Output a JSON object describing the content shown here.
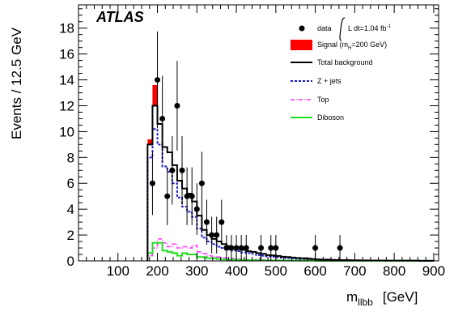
{
  "chart_data": {
    "type": "histogram",
    "title": "",
    "experiment_label": "ATLAS",
    "xlabel_main": "m",
    "xlabel_sub": "llbb",
    "xlabel_unit": "[GeV]",
    "ylabel": "Events / 12.5 GeV",
    "xlim": [
      0,
      912.5
    ],
    "ylim": [
      0,
      19.8
    ],
    "bin_width": 12.5,
    "bin_start": 175,
    "x_ticks": [
      100,
      200,
      300,
      400,
      500,
      600,
      700,
      800,
      900
    ],
    "y_ticks": [
      0,
      2,
      4,
      6,
      8,
      10,
      12,
      14,
      16,
      18
    ],
    "grid": false,
    "legend_position": "top-right",
    "legend": {
      "data": "data",
      "data_lumi": "L dt=1.04 fb",
      "data_lumi_sup": "-1",
      "signal_pre": "Signal (m",
      "signal_sub": "H",
      "signal_post": "=200 GeV)",
      "total": "Total background",
      "zjets": "Z + jets",
      "top": "Top",
      "diboson": "Diboson"
    },
    "colors": {
      "data": "#000000",
      "signal": "#ff0000",
      "total": "#000000",
      "zjets": "#1a1acc",
      "top": "#ff33ff",
      "diboson": "#22dd22"
    },
    "total_background": [
      9.0,
      12.0,
      10.6,
      8.8,
      8.4,
      7.4,
      6.2,
      5.6,
      5.2,
      4.6,
      3.5,
      2.4,
      2.0,
      1.7,
      1.5,
      1.3,
      1.15,
      1.05,
      0.95,
      0.85,
      0.75,
      0.7,
      0.6,
      0.55,
      0.45,
      0.42,
      0.38,
      0.32,
      0.3,
      0.26,
      0.22,
      0.2,
      0.18,
      0.15,
      0.12,
      0.1,
      0.1,
      0.08,
      0.07,
      0.06,
      0.06,
      0.05,
      0.05,
      0.04,
      0.04,
      0.03,
      0.03,
      0.03,
      0.02,
      0.02,
      0.02,
      0.02,
      0.02,
      0.02,
      0.02,
      0.01,
      0.01,
      0.01
    ],
    "signal_plus_background": [
      9.4,
      13.6,
      10.6,
      8.8,
      8.4,
      7.4,
      6.2,
      5.6,
      5.2,
      4.6,
      3.5,
      2.4,
      2.0,
      1.7,
      1.5,
      1.3,
      1.15,
      1.05,
      0.95,
      0.85,
      0.75,
      0.7,
      0.6,
      0.55,
      0.45,
      0.42,
      0.38,
      0.32,
      0.3,
      0.26,
      0.22,
      0.2,
      0.18,
      0.15,
      0.12,
      0.1,
      0.1,
      0.08,
      0.07,
      0.06,
      0.06,
      0.05,
      0.05,
      0.04,
      0.04,
      0.03,
      0.03,
      0.03,
      0.02,
      0.02,
      0.02,
      0.02,
      0.02,
      0.02,
      0.02,
      0.01,
      0.01,
      0.01
    ],
    "zjets": [
      8.0,
      10.2,
      9.0,
      7.3,
      6.9,
      6.0,
      4.9,
      4.2,
      3.8,
      3.4,
      2.5,
      1.8,
      1.5,
      1.3,
      1.1,
      1.0,
      0.9,
      0.8,
      0.75,
      0.65,
      0.6,
      0.55,
      0.45,
      0.4,
      0.35,
      0.32,
      0.28,
      0.24,
      0.22,
      0.2,
      0.17,
      0.15,
      0.13,
      0.11,
      0.09,
      0.08,
      0.07,
      0.06,
      0.05,
      0.05,
      0.04,
      0.04,
      0.03,
      0.03,
      0.03,
      0.02,
      0.02,
      0.02,
      0.02,
      0.01,
      0.01,
      0.01,
      0.01,
      0.01,
      0.01,
      0.01,
      0.01,
      0.01
    ],
    "top": [
      0.4,
      1.0,
      1.7,
      1.4,
      1.1,
      1.3,
      1.0,
      1.1,
      1.0,
      1.2,
      0.7,
      0.55,
      0.4,
      0.35,
      0.3,
      0.25,
      0.2,
      0.18,
      0.15,
      0.12,
      0.1,
      0.1,
      0.09,
      0.08,
      0.07,
      0.06,
      0.05,
      0.05,
      0.04,
      0.03,
      0.03,
      0.03,
      0.02,
      0.02,
      0.02,
      0.02,
      0.01,
      0.01,
      0.01,
      0.01,
      0.01,
      0.01,
      0.01,
      0.01,
      0.01,
      0.01,
      0.01,
      0.01,
      0.01,
      0.01,
      0.01,
      0.01,
      0.01,
      0.01,
      0.01,
      0.01,
      0.01,
      0.01
    ],
    "diboson": [
      0.6,
      1.4,
      1.4,
      0.8,
      0.7,
      0.6,
      0.4,
      0.6,
      0.5,
      0.5,
      0.3,
      0.3,
      0.2,
      0.2,
      0.15,
      0.12,
      0.1,
      0.1,
      0.08,
      0.07,
      0.06,
      0.05,
      0.05,
      0.04,
      0.04,
      0.03,
      0.03,
      0.03,
      0.03,
      0.02,
      0.02,
      0.02,
      0.02,
      0.02,
      0.01,
      0.01,
      0.01,
      0.01,
      0.01,
      0.01,
      0.01,
      0.01,
      0.01,
      0.01,
      0.01,
      0.01,
      0.01,
      0.01,
      0.01,
      0.01,
      0.01,
      0.01,
      0.01,
      0.01,
      0.01,
      0.01,
      0.01,
      0.01
    ],
    "data_points": [
      {
        "x": 187.5,
        "y": 6
      },
      {
        "x": 200,
        "y": 14
      },
      {
        "x": 212.5,
        "y": 11
      },
      {
        "x": 225,
        "y": 5
      },
      {
        "x": 237.5,
        "y": 7
      },
      {
        "x": 250,
        "y": 12
      },
      {
        "x": 262.5,
        "y": 7
      },
      {
        "x": 275,
        "y": 5
      },
      {
        "x": 287.5,
        "y": 5
      },
      {
        "x": 300,
        "y": 4
      },
      {
        "x": 312.5,
        "y": 6
      },
      {
        "x": 325,
        "y": 3
      },
      {
        "x": 337.5,
        "y": 2
      },
      {
        "x": 350,
        "y": 2
      },
      {
        "x": 362.5,
        "y": 3
      },
      {
        "x": 375,
        "y": 1
      },
      {
        "x": 387.5,
        "y": 1
      },
      {
        "x": 400,
        "y": 1
      },
      {
        "x": 412.5,
        "y": 1
      },
      {
        "x": 425,
        "y": 1
      },
      {
        "x": 462.5,
        "y": 1
      },
      {
        "x": 487.5,
        "y": 1
      },
      {
        "x": 500,
        "y": 1
      },
      {
        "x": 600,
        "y": 1
      },
      {
        "x": 662.5,
        "y": 1
      }
    ]
  }
}
